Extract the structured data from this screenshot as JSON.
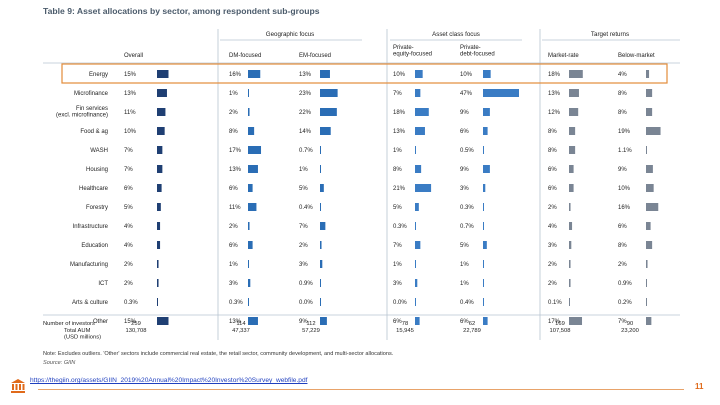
{
  "title": "Table 9: Asset allocations by sector, among respondent sub-groups",
  "group_headers": [
    "Geographic focus",
    "Asset class focus",
    "Target returns"
  ],
  "column_headers": [
    "Overall",
    "DM-focused",
    "EM-focused",
    "Private-\nequity-focused",
    "Private-\ndebt-focused",
    "Market-rate",
    "Below-market"
  ],
  "row_labels": [
    "Energy",
    "Microfinance",
    "Fin services\n(excl. microfinance)",
    "Food & ag",
    "WASH",
    "Housing",
    "Healthcare",
    "Forestry",
    "Infrastructure",
    "Education",
    "Manufacturing",
    "ICT",
    "Arts & culture",
    "Other"
  ],
  "highlighted_row": "Energy",
  "colors": {
    "overall_bar": "#1f3f73",
    "geo_bar": "#2a6db5",
    "asset_bar": "#3a7cc4",
    "returns_bar": "#7a8594",
    "highlight_border": "#e38b3a",
    "divider": "#b7c4d0"
  },
  "chart_data": {
    "type": "table",
    "title": "Table 9: Asset allocations by sector, among respondent sub-groups",
    "columns": [
      "Overall",
      "DM-focused",
      "EM-focused",
      "Private-equity-focused",
      "Private-debt-focused",
      "Market-rate",
      "Below-market"
    ],
    "rows": [
      {
        "sector": "Energy",
        "labels": [
          "15%",
          "16%",
          "13%",
          "10%",
          "10%",
          "18%",
          "4%"
        ],
        "values": [
          15,
          16,
          13,
          10,
          10,
          18,
          4
        ]
      },
      {
        "sector": "Microfinance",
        "labels": [
          "13%",
          "1%",
          "23%",
          "7%",
          "47%",
          "13%",
          "8%"
        ],
        "values": [
          13,
          1,
          23,
          7,
          47,
          13,
          8
        ]
      },
      {
        "sector": "Fin services (excl. microfinance)",
        "labels": [
          "11%",
          "2%",
          "22%",
          "18%",
          "9%",
          "12%",
          "8%"
        ],
        "values": [
          11,
          2,
          22,
          18,
          9,
          12,
          8
        ]
      },
      {
        "sector": "Food & ag",
        "labels": [
          "10%",
          "8%",
          "14%",
          "13%",
          "6%",
          "8%",
          "19%"
        ],
        "values": [
          10,
          8,
          14,
          13,
          6,
          8,
          19
        ]
      },
      {
        "sector": "WASH",
        "labels": [
          "7%",
          "17%",
          "0.7%",
          "1%",
          "0.5%",
          "8%",
          "1.1%"
        ],
        "values": [
          7,
          17,
          0.7,
          1,
          0.5,
          8,
          1.1
        ]
      },
      {
        "sector": "Housing",
        "labels": [
          "7%",
          "13%",
          "1%",
          "8%",
          "9%",
          "6%",
          "9%"
        ],
        "values": [
          7,
          13,
          1,
          8,
          9,
          6,
          9
        ]
      },
      {
        "sector": "Healthcare",
        "labels": [
          "6%",
          "6%",
          "5%",
          "21%",
          "3%",
          "6%",
          "10%"
        ],
        "values": [
          6,
          6,
          5,
          21,
          3,
          6,
          10
        ]
      },
      {
        "sector": "Forestry",
        "labels": [
          "5%",
          "11%",
          "0.4%",
          "5%",
          "0.3%",
          "2%",
          "16%"
        ],
        "values": [
          5,
          11,
          0.4,
          5,
          0.3,
          2,
          16
        ]
      },
      {
        "sector": "Infrastructure",
        "labels": [
          "4%",
          "2%",
          "7%",
          "0.3%",
          "0.7%",
          "4%",
          "6%"
        ],
        "values": [
          4,
          2,
          7,
          0.3,
          0.7,
          4,
          6
        ]
      },
      {
        "sector": "Education",
        "labels": [
          "4%",
          "6%",
          "2%",
          "7%",
          "5%",
          "3%",
          "8%"
        ],
        "values": [
          4,
          6,
          2,
          7,
          5,
          3,
          8
        ]
      },
      {
        "sector": "Manufacturing",
        "labels": [
          "2%",
          "1%",
          "3%",
          "1%",
          "1%",
          "2%",
          "2%"
        ],
        "values": [
          2,
          1,
          3,
          1,
          1,
          2,
          2
        ]
      },
      {
        "sector": "ICT",
        "labels": [
          "2%",
          "3%",
          "0.9%",
          "3%",
          "1%",
          "2%",
          "0.9%"
        ],
        "values": [
          2,
          3,
          0.9,
          3,
          1,
          2,
          0.9
        ]
      },
      {
        "sector": "Arts & culture",
        "labels": [
          "0.3%",
          "0.3%",
          "0.0%",
          "0.0%",
          "0.4%",
          "0.1%",
          "0.2%"
        ],
        "values": [
          0.3,
          0.3,
          0.0,
          0.0,
          0.4,
          0.1,
          0.2
        ]
      },
      {
        "sector": "Other",
        "labels": [
          "15%",
          "13%",
          "9%",
          "6%",
          "6%",
          "17%",
          "7%"
        ],
        "values": [
          15,
          13,
          9,
          6,
          6,
          17,
          7
        ]
      }
    ],
    "bar_max_value": 47
  },
  "summary": {
    "labels": [
      "Number of investors",
      "Total AUM\n(USD millions)"
    ],
    "investors": [
      "259",
      "114",
      "112",
      "78",
      "62",
      "169",
      "90"
    ],
    "aum": [
      "130,708",
      "47,337",
      "57,229",
      "15,945",
      "22,789",
      "107,508",
      "23,200"
    ]
  },
  "note": "Note: Excludes outliers. 'Other' sectors include commercial real estate, the retail sector, community development, and multi-sector allocations.",
  "source": "Source: GIIN",
  "url": "https://thegiin.org/assets/GIIN_2019%20Annual%20Impact%20Investor%20Survey_webfile.pdf",
  "page_number": "11"
}
